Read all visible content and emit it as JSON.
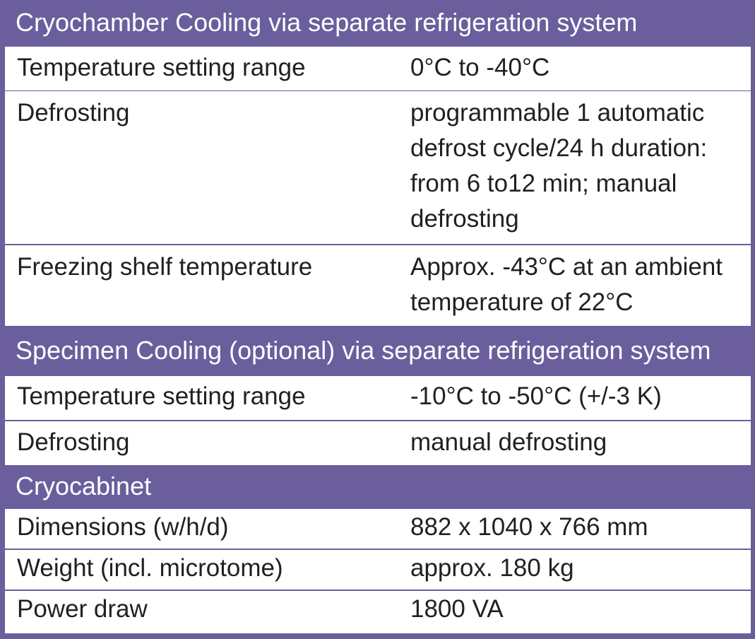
{
  "sections": [
    {
      "title": "Cryochamber Cooling via separate refrigeration system",
      "rows": [
        {
          "label": "Temperature setting range",
          "value_lines": [
            "0°C to -40°C"
          ]
        },
        {
          "label": "Defrosting",
          "value_lines": [
            "programmable 1 automatic",
            "defrost cycle/24 h duration:",
            "from 6 to12 min; manual",
            "defrosting"
          ]
        },
        {
          "label": "Freezing shelf temperature",
          "value_lines": [
            "Approx. -43°C at an ambient",
            "temperature of 22°C"
          ]
        }
      ]
    },
    {
      "title": "Specimen Cooling (optional) via separate refrigeration system",
      "rows": [
        {
          "label": "Temperature setting range",
          "value_lines": [
            "-10°C to -50°C (+/-3 K)"
          ]
        },
        {
          "label": "Defrosting",
          "value_lines": [
            "manual defrosting"
          ]
        }
      ]
    },
    {
      "title": "Cryocabinet",
      "rows": [
        {
          "label": "Dimensions (w/h/d)",
          "value_lines": [
            "882 x 1040 x 766 mm"
          ]
        },
        {
          "label": "Weight (incl. microtome)",
          "value_lines": [
            "approx. 180 kg"
          ]
        },
        {
          "label": "Power draw",
          "value_lines": [
            "1800 VA"
          ]
        }
      ]
    }
  ]
}
